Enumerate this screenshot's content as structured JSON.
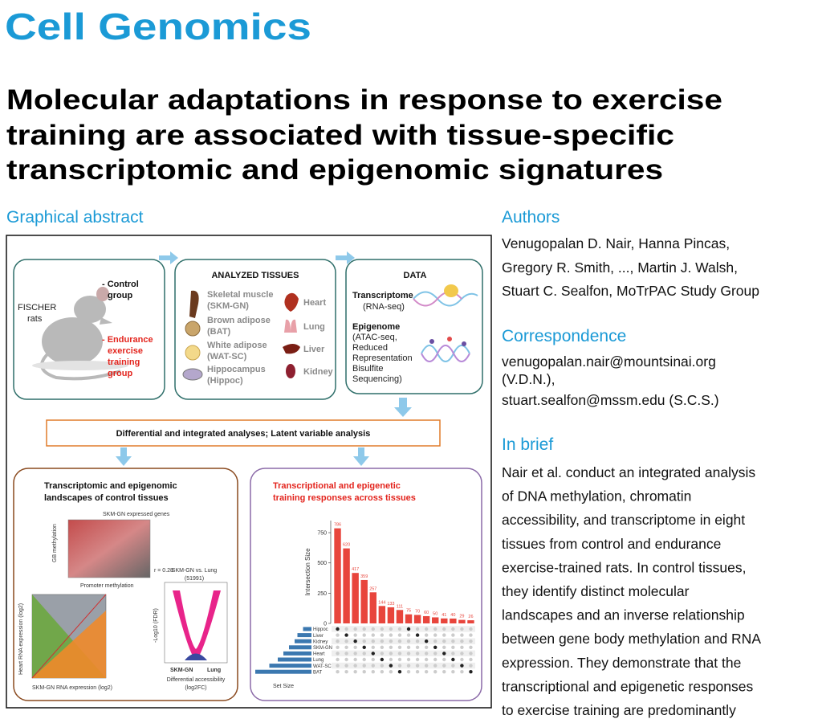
{
  "journal": "Cell Genomics",
  "title": {
    "lines": [
      "Molecular adaptations in response to exercise",
      "training are associated with tissue-specific",
      "transcriptomic and epigenomic signatures"
    ]
  },
  "graphical_abstract": {
    "heading": "Graphical abstract",
    "rats": {
      "strain": [
        "FISCHER",
        "rats"
      ],
      "control": [
        "- Control",
        "group"
      ],
      "endurance": [
        "- Endurance",
        "exercise",
        "training",
        "group"
      ]
    },
    "tissues": {
      "title": "ANALYZED TISSUES",
      "left": [
        [
          "Skeletal muscle",
          "(SKM-GN)"
        ],
        [
          "Brown adipose",
          "(BAT)"
        ],
        [
          "White adipose",
          "(WAT-SC)"
        ],
        [
          "Hippocampus",
          "(Hippoc)"
        ]
      ],
      "right": [
        "Heart",
        "Lung",
        "Liver",
        "Kidney"
      ]
    },
    "data": {
      "title": "DATA",
      "transcriptome": [
        "Transcriptome",
        "(RNA-seq)"
      ],
      "epigenome": [
        "Epigenome",
        "(ATAC-seq,",
        "Reduced",
        "Representation",
        "Bisulfite",
        "Sequencing)"
      ]
    },
    "analysis": "Differential and integrated analyses; Latent variable analysis",
    "left_panel": {
      "title": [
        "Transcriptomic and epigenomic",
        "landscapes of control tissues"
      ],
      "scatter1": {
        "title": "SKM-GN expressed genes",
        "ylabel": "GB methylation",
        "xlabel": "Promoter methylation",
        "note": "r = 0.28"
      },
      "scatter2": {
        "ylabel": "Heart RNA expression (log2)",
        "xlabel": "SKM-GN RNA expression (log2)"
      },
      "volcano": {
        "title": "SKM-GN vs. Lung",
        "count": "(51991)",
        "ylabel": "-Log10 (FDR)",
        "left": "SKM-GN",
        "right": "Lung",
        "xlabel": [
          "Differential accessibility",
          "(log2FC)"
        ]
      }
    },
    "right_panel": {
      "title": [
        "Transcriptional and epigenetic",
        "training responses across tissues"
      ],
      "chart_data": {
        "type": "upset",
        "ylabel": "Intersection Size",
        "values": [
          786,
          620,
          417,
          359,
          257,
          144,
          133,
          111,
          75,
          70,
          60,
          50,
          41,
          40,
          29,
          26
        ],
        "color": "#e8453c",
        "ylim": [
          0,
          850
        ],
        "yticks": [
          0,
          250,
          500,
          750
        ],
        "sets": [
          "Hippoc",
          "Liver",
          "Kidney",
          "SKM-GN",
          "Heart",
          "Lung",
          "WAT-SC",
          "BAT"
        ],
        "set_sizes": [
          150,
          250,
          300,
          400,
          500,
          600,
          750,
          1000
        ],
        "set_color": "#3b78b0",
        "set_xlabel": "Set Size",
        "set_xlim": [
          0,
          1000
        ]
      }
    }
  },
  "authors": {
    "heading": "Authors",
    "lines": [
      "Venugopalan D. Nair, Hanna Pincas,",
      "Gregory R. Smith, ..., Martin J. Walsh,",
      "Stuart C. Sealfon, MoTrPAC Study Group"
    ]
  },
  "correspondence": {
    "heading": "Correspondence",
    "lines": [
      "venugopalan.nair@mountsinai.org",
      "(V.D.N.),",
      "stuart.sealfon@mssm.edu (S.C.S.)"
    ]
  },
  "in_brief": {
    "heading": "In brief",
    "lines": [
      "Nair et al. conduct an integrated analysis",
      "of DNA methylation, chromatin",
      "accessibility, and transcriptome in eight",
      "tissues from control and endurance",
      "exercise-trained rats. In control tissues,",
      "they identify distinct molecular",
      "landscapes and an inverse relationship",
      "between gene body methylation and RNA",
      "expression. They demonstrate that the",
      "transcriptional and epigenetic responses",
      "to exercise training are predominantly"
    ]
  }
}
